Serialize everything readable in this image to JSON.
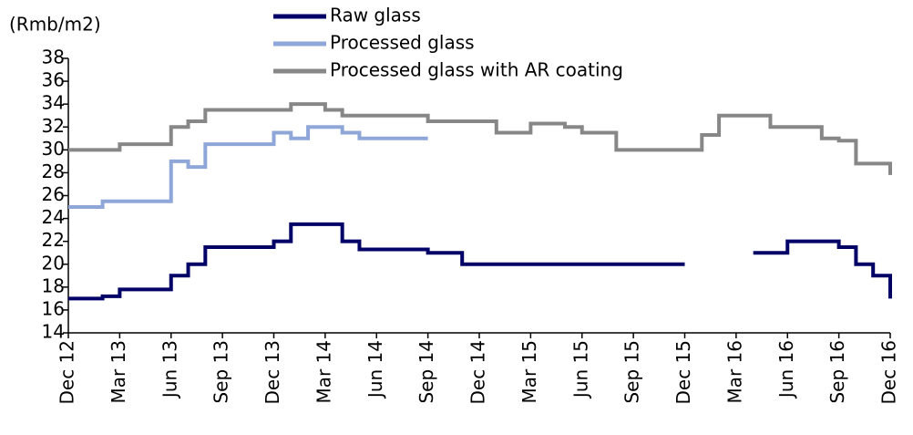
{
  "chart_data": {
    "type": "line",
    "step": true,
    "y_label": "(Rmb/m2)",
    "x": [
      "2012-12",
      "2013-01",
      "2013-02",
      "2013-03",
      "2013-04",
      "2013-05",
      "2013-06",
      "2013-07",
      "2013-08",
      "2013-09",
      "2013-10",
      "2013-11",
      "2013-12",
      "2014-01",
      "2014-02",
      "2014-03",
      "2014-04",
      "2014-05",
      "2014-06",
      "2014-07",
      "2014-08",
      "2014-09",
      "2014-10",
      "2014-11",
      "2014-12",
      "2015-01",
      "2015-02",
      "2015-03",
      "2015-04",
      "2015-05",
      "2015-06",
      "2015-07",
      "2015-08",
      "2015-09",
      "2015-10",
      "2015-11",
      "2015-12",
      "2016-01",
      "2016-02",
      "2016-03",
      "2016-04",
      "2016-05",
      "2016-06",
      "2016-07",
      "2016-08",
      "2016-09",
      "2016-10",
      "2016-11",
      "2016-12"
    ],
    "xlim": [
      "2012-12",
      "2016-12"
    ],
    "xticks": [
      {
        "value": "2012-12",
        "label": "Dec 12"
      },
      {
        "value": "2013-03",
        "label": "Mar 13"
      },
      {
        "value": "2013-06",
        "label": "Jun 13"
      },
      {
        "value": "2013-09",
        "label": "Sep 13"
      },
      {
        "value": "2013-12",
        "label": "Dec 13"
      },
      {
        "value": "2014-03",
        "label": "Mar 14"
      },
      {
        "value": "2014-06",
        "label": "Jun 14"
      },
      {
        "value": "2014-09",
        "label": "Sep 14"
      },
      {
        "value": "2014-12",
        "label": "Dec 14"
      },
      {
        "value": "2015-03",
        "label": "Mar 15"
      },
      {
        "value": "2015-06",
        "label": "Jun 15"
      },
      {
        "value": "2015-09",
        "label": "Sep 15"
      },
      {
        "value": "2015-12",
        "label": "Dec 15"
      },
      {
        "value": "2016-03",
        "label": "Mar 16"
      },
      {
        "value": "2016-06",
        "label": "Jun 16"
      },
      {
        "value": "2016-09",
        "label": "Sep 16"
      },
      {
        "value": "2016-12",
        "label": "Dec 16"
      }
    ],
    "ylim": [
      14,
      38
    ],
    "yticks": [
      14,
      16,
      18,
      20,
      22,
      24,
      26,
      28,
      30,
      32,
      34,
      36,
      38
    ],
    "series": [
      {
        "name": "Raw glass",
        "color": "#000066",
        "values": [
          17,
          17,
          17.2,
          17.8,
          17.8,
          17.8,
          19,
          20,
          21.5,
          21.5,
          21.5,
          21.5,
          22,
          23.5,
          23.5,
          23.5,
          22,
          21.3,
          21.3,
          21.3,
          21.3,
          21,
          21,
          20,
          20,
          20,
          20,
          20,
          20,
          20,
          20,
          20,
          20,
          20,
          20,
          20,
          20,
          null,
          null,
          null,
          21,
          21,
          22,
          22,
          22,
          21.5,
          20,
          19,
          17
        ]
      },
      {
        "name": "Processed glass",
        "color": "#8ea6d8",
        "values": [
          25,
          25,
          25.5,
          25.5,
          25.5,
          25.5,
          29,
          28.5,
          30.5,
          30.5,
          30.5,
          30.5,
          31.5,
          31,
          32,
          32,
          31.5,
          31,
          31,
          31,
          31,
          31,
          null,
          null,
          null,
          null,
          null,
          null,
          null,
          null,
          null,
          null,
          null,
          null,
          null,
          null,
          null,
          null,
          null,
          null,
          null,
          null,
          null,
          null,
          null,
          null,
          null,
          null,
          null
        ]
      },
      {
        "name": "Processed glass with AR coating",
        "color": "#878787",
        "values": [
          30,
          30,
          30,
          30.5,
          30.5,
          30.5,
          32,
          32.5,
          33.5,
          33.5,
          33.5,
          33.5,
          33.5,
          34,
          34,
          33.5,
          33,
          33,
          33,
          33,
          33,
          32.5,
          32.5,
          32.5,
          32.5,
          31.5,
          31.5,
          32.3,
          32.3,
          32,
          31.5,
          31.5,
          30,
          30,
          30,
          30,
          30,
          31.3,
          33,
          33,
          33,
          32,
          32,
          32,
          31,
          30.8,
          28.8,
          28.8,
          27.8
        ]
      }
    ]
  }
}
